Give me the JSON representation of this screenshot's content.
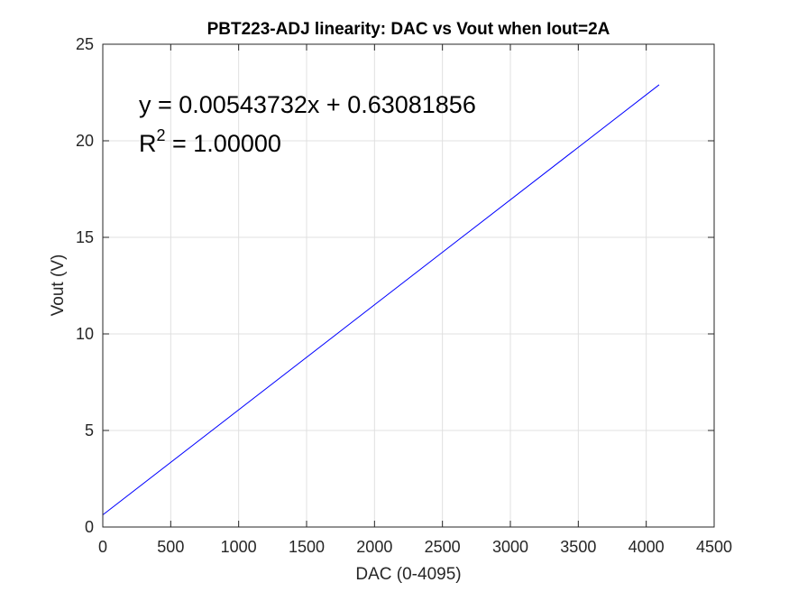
{
  "chart_data": {
    "type": "line",
    "title": "PBT223-ADJ linearity: DAC vs Vout when Iout=2A",
    "xlabel": "DAC (0-4095)",
    "ylabel": "Vout (V)",
    "xlim": [
      0,
      4500
    ],
    "ylim": [
      0,
      25
    ],
    "xticks": [
      0,
      500,
      1000,
      1500,
      2000,
      2500,
      3000,
      3500,
      4000,
      4500
    ],
    "yticks": [
      0,
      5,
      10,
      15,
      20,
      25
    ],
    "grid": true,
    "series": [
      {
        "color": "#0000ff",
        "x": [
          0,
          4095
        ],
        "y": [
          0.63,
          22.9
        ]
      }
    ],
    "annotations": {
      "equation": "y = 0.00543732x + 0.63081856",
      "r2_prefix": "R",
      "r2_exponent": "2",
      "r2_value": " = 1.00000"
    }
  }
}
